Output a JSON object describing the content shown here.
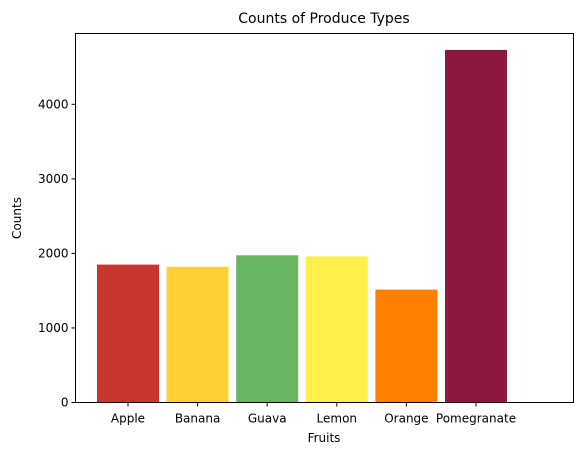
{
  "chart_data": {
    "type": "bar",
    "title": "Counts of Produce Types",
    "xlabel": "Fruits",
    "ylabel": "Counts",
    "categories": [
      "Apple",
      "Banana",
      "Guava",
      "Lemon",
      "Orange",
      "Pomegranate"
    ],
    "values": [
      1850,
      1820,
      1975,
      1960,
      1515,
      4730
    ],
    "colors": [
      "#C9352F",
      "#FFD035",
      "#6AB563",
      "#FFEF4B",
      "#FF8000",
      "#8E1740"
    ],
    "ylim": [
      0,
      4950
    ],
    "yticks": [
      0,
      1000,
      2000,
      3000,
      4000
    ],
    "grid": false,
    "legend": "none"
  }
}
